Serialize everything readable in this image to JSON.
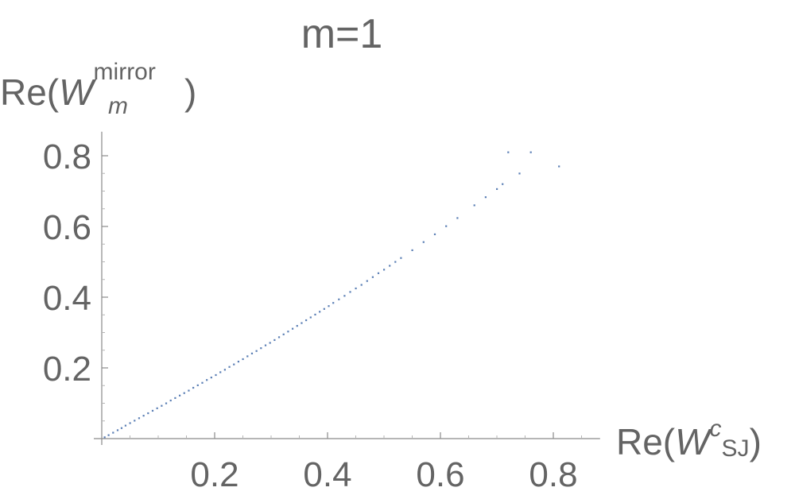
{
  "chart_data": {
    "type": "scatter",
    "title": "m=1",
    "xlabel": {
      "prefix": "Re(",
      "symbol": "W",
      "sup": "c",
      "sub": "SJ",
      "suffix": ")"
    },
    "ylabel": {
      "prefix": "Re(",
      "symbol": "W",
      "sup": "mirror",
      "sub": "m",
      "suffix": ")"
    },
    "xlim": [
      0,
      0.88
    ],
    "ylim": [
      0,
      0.85
    ],
    "xticks": [
      0.2,
      0.4,
      0.6,
      0.8
    ],
    "yticks": [
      0.2,
      0.4,
      0.6,
      0.8
    ],
    "grid": false,
    "legend": "none",
    "marker_color": "#5b7fb5",
    "series": [
      {
        "x": [
          0.005,
          0.012,
          0.02,
          0.028,
          0.035,
          0.042,
          0.05,
          0.058,
          0.066,
          0.074,
          0.082,
          0.09,
          0.098,
          0.106,
          0.114,
          0.122,
          0.13,
          0.138,
          0.146,
          0.154,
          0.162,
          0.17,
          0.178,
          0.186,
          0.194,
          0.202,
          0.21,
          0.218,
          0.226,
          0.234,
          0.242,
          0.25,
          0.258,
          0.266,
          0.274,
          0.282,
          0.29,
          0.298,
          0.306,
          0.314,
          0.322,
          0.33,
          0.338,
          0.346,
          0.354,
          0.362,
          0.37,
          0.378,
          0.386,
          0.394,
          0.402,
          0.41,
          0.42,
          0.43,
          0.44,
          0.45,
          0.46,
          0.47,
          0.48,
          0.49,
          0.5,
          0.51,
          0.52,
          0.53,
          0.55,
          0.57,
          0.59,
          0.61,
          0.63,
          0.66,
          0.68,
          0.7,
          0.71,
          0.72,
          0.74,
          0.76,
          0.81
        ],
        "y": [
          0.004,
          0.01,
          0.017,
          0.024,
          0.03,
          0.037,
          0.044,
          0.051,
          0.058,
          0.065,
          0.072,
          0.079,
          0.086,
          0.093,
          0.1,
          0.108,
          0.115,
          0.122,
          0.129,
          0.136,
          0.144,
          0.151,
          0.158,
          0.166,
          0.173,
          0.18,
          0.188,
          0.195,
          0.203,
          0.21,
          0.218,
          0.225,
          0.233,
          0.241,
          0.248,
          0.256,
          0.264,
          0.271,
          0.279,
          0.287,
          0.295,
          0.303,
          0.311,
          0.319,
          0.327,
          0.335,
          0.343,
          0.351,
          0.359,
          0.367,
          0.375,
          0.384,
          0.394,
          0.404,
          0.415,
          0.425,
          0.435,
          0.446,
          0.457,
          0.468,
          0.478,
          0.489,
          0.5,
          0.511,
          0.533,
          0.556,
          0.578,
          0.601,
          0.624,
          0.66,
          0.683,
          0.706,
          0.72,
          0.81,
          0.75,
          0.81,
          0.77
        ]
      }
    ]
  }
}
